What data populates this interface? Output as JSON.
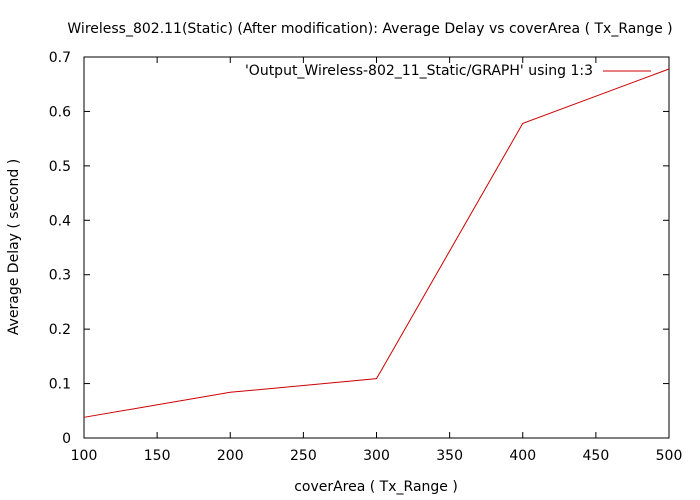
{
  "chart_data": {
    "type": "line",
    "title": "Wireless_802.11(Static) (After modification): Average Delay vs coverArea ( Tx_Range )",
    "xlabel": "coverArea ( Tx_Range )",
    "ylabel": "Average Delay ( second )",
    "xlim": [
      100,
      500
    ],
    "ylim": [
      0,
      0.7
    ],
    "xticks": [
      100,
      150,
      200,
      250,
      300,
      350,
      400,
      450,
      500
    ],
    "xtick_labels": [
      "100",
      "150",
      "200",
      "250",
      "300",
      "350",
      "400",
      "450",
      "500"
    ],
    "yticks": [
      0,
      0.1,
      0.2,
      0.3,
      0.4,
      0.5,
      0.6,
      0.7
    ],
    "ytick_labels": [
      "0",
      "0.1",
      "0.2",
      "0.3",
      "0.4",
      "0.5",
      "0.6",
      "0.7"
    ],
    "grid": false,
    "legend_position": "top-right",
    "series": [
      {
        "name": "'Output_Wireless-802_11_Static/GRAPH' using 1:3",
        "color": "#cc0000",
        "x": [
          100,
          200,
          300,
          400,
          500
        ],
        "y": [
          0.038,
          0.084,
          0.109,
          0.578,
          0.678
        ]
      }
    ]
  }
}
